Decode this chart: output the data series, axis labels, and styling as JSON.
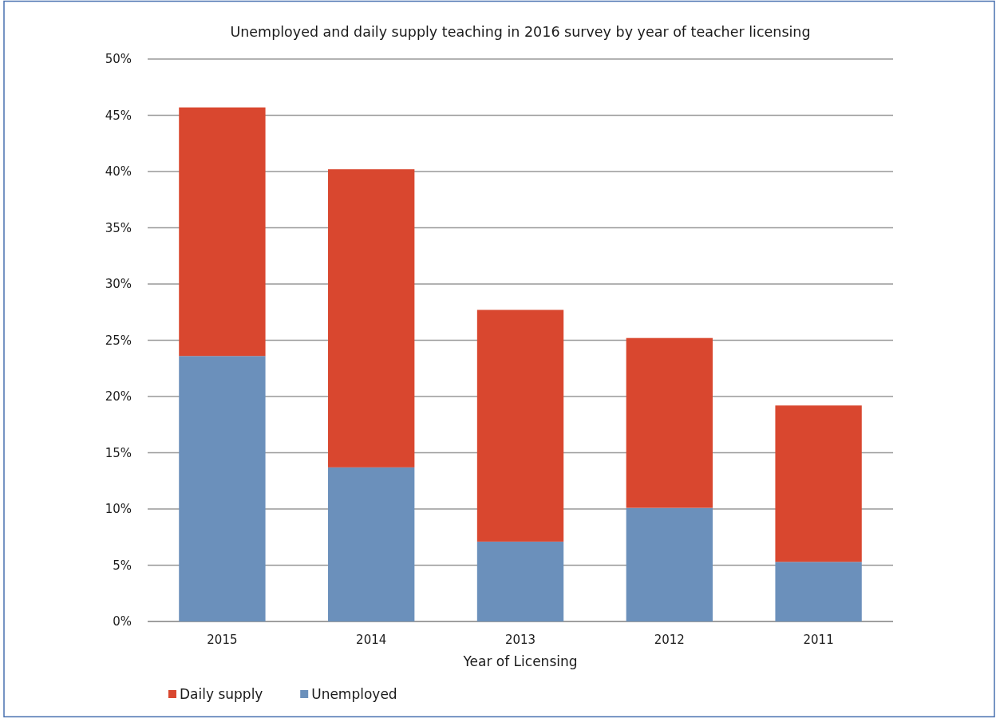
{
  "chart_data": {
    "type": "bar",
    "title": "Unemployed and daily supply teaching in 2016 survey by year of teacher licensing",
    "xlabel": "Year of Licensing",
    "categories": [
      "2015",
      "2014",
      "2013",
      "2012",
      "2011"
    ],
    "stacked": true,
    "series": [
      {
        "name": "Unemployed",
        "color": "#6b90bb",
        "values": [
          23.6,
          13.7,
          7.1,
          10.1,
          5.3
        ]
      },
      {
        "name": "Daily supply",
        "color": "#d9472f",
        "values": [
          22.1,
          26.5,
          20.6,
          15.1,
          13.9
        ]
      }
    ],
    "ylim": [
      0,
      50
    ],
    "yticks": [
      {
        "value": 0,
        "label": "0%"
      },
      {
        "value": 5,
        "label": "5%"
      },
      {
        "value": 10,
        "label": "10%"
      },
      {
        "value": 15,
        "label": "15%"
      },
      {
        "value": 20,
        "label": "20%"
      },
      {
        "value": 25,
        "label": "25%"
      },
      {
        "value": 30,
        "label": "30%"
      },
      {
        "value": 35,
        "label": "35%"
      },
      {
        "value": 40,
        "label": "40%"
      },
      {
        "value": 45,
        "label": "45%"
      },
      {
        "value": 50,
        "label": "50%"
      }
    ],
    "grid": "y",
    "legend": "bottom"
  }
}
